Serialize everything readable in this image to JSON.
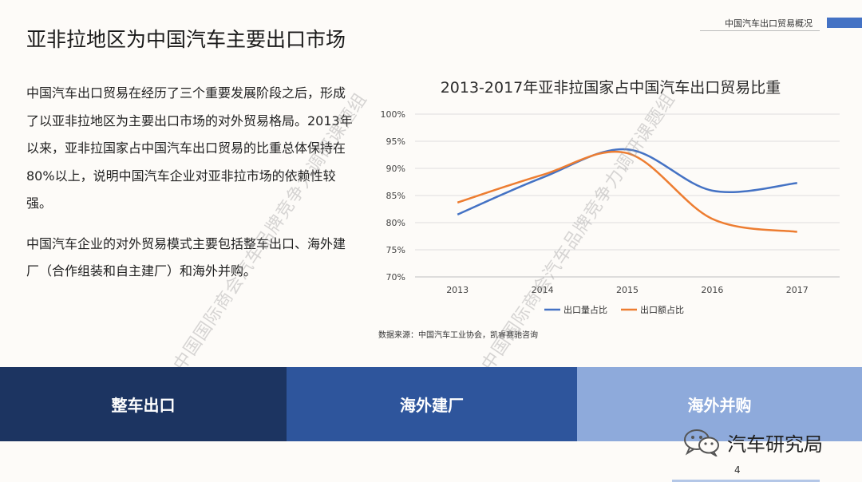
{
  "header": {
    "section_label": "中国汽车出口贸易概况"
  },
  "page_title": "亚非拉地区为中国汽车主要出口市场",
  "body": {
    "paragraph_1": "中国汽车出口贸易在经历了三个重要发展阶段之后，形成了以亚非拉地区为主要出口市场的对外贸易格局。2013年以来，亚非拉国家占中国汽车出口贸易的比重总体保持在80%以上，说明中国汽车企业对亚非拉市场的依赖性较强。",
    "paragraph_2": "中国汽车企业的对外贸易模式主要包括整车出口、海外建厂（合作组装和自主建厂）和海外并购。"
  },
  "watermark_text": "中国国际商会汽车品牌竞争力调研课题组",
  "chart_data": {
    "type": "line",
    "title": "2013-2017年亚非拉国家占中国汽车出口贸易比重",
    "x": [
      "2013",
      "2014",
      "2015",
      "2016",
      "2017"
    ],
    "series": [
      {
        "name": "出口量占比",
        "color": "#4472c4",
        "values": [
          81.5,
          88.3,
          93.5,
          85.9,
          87.3
        ]
      },
      {
        "name": "出口额占比",
        "color": "#ed7d31",
        "values": [
          83.7,
          88.8,
          92.8,
          80.7,
          78.3
        ]
      }
    ],
    "ylim": [
      70,
      100
    ],
    "yticks": [
      "70%",
      "75%",
      "80%",
      "85%",
      "90%",
      "95%",
      "100%"
    ],
    "grid": true,
    "legend": "bottom",
    "source_note": "数据来源：中国汽车工业协会，凯睿赛驰咨询"
  },
  "bands": [
    "整车出口",
    "海外建厂",
    "海外并购"
  ],
  "brand": {
    "name": "汽车研究局",
    "icon": "wechat-icon"
  },
  "page_number": "4",
  "colors": {
    "band_dark": "#1c3461",
    "band_mid": "#2e559c",
    "band_light": "#8eaadb",
    "accent": "#4472c4"
  }
}
